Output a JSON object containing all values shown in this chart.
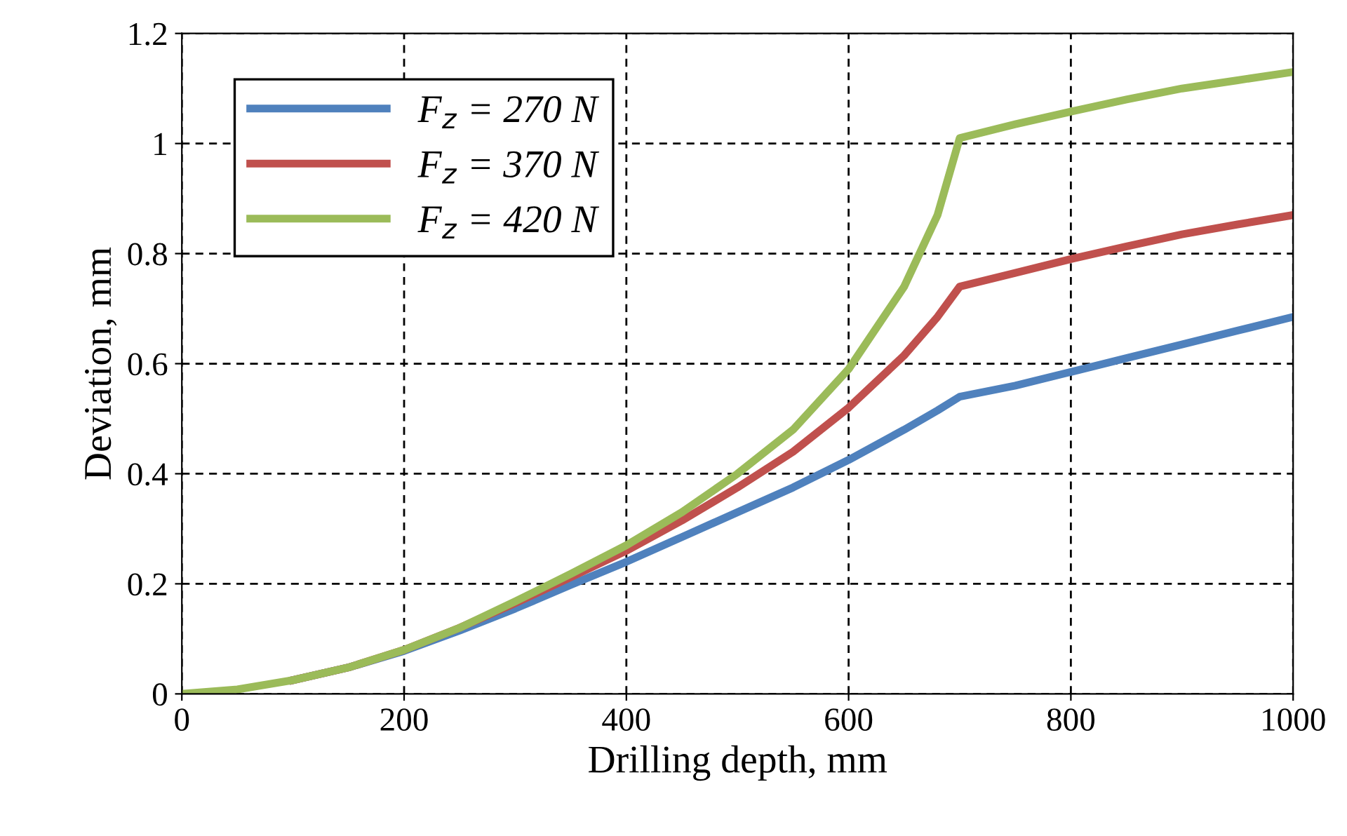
{
  "chart_data": {
    "type": "line",
    "xlabel": "Drilling depth, mm",
    "ylabel": "Deviation, mm",
    "x": [
      0,
      50,
      100,
      150,
      200,
      250,
      300,
      350,
      400,
      450,
      500,
      550,
      600,
      650,
      680,
      700,
      750,
      800,
      850,
      900,
      950,
      1000
    ],
    "series": [
      {
        "name": "F$_{z}$ = 270 N",
        "color": "#4f81bd",
        "values": [
          null,
          null,
          0.025,
          0.048,
          0.078,
          0.115,
          0.155,
          0.198,
          0.24,
          0.285,
          0.33,
          0.375,
          0.425,
          0.48,
          0.515,
          0.54,
          0.56,
          0.585,
          0.61,
          0.635,
          0.66,
          0.685
        ]
      },
      {
        "name": "F$_{z}$ = 370 N",
        "color": "#c0504d",
        "values": [
          null,
          null,
          0.025,
          0.048,
          0.08,
          0.12,
          0.165,
          0.212,
          0.26,
          0.315,
          0.375,
          0.44,
          0.52,
          0.615,
          0.685,
          0.74,
          0.765,
          0.79,
          0.813,
          0.835,
          0.853,
          0.87
        ]
      },
      {
        "name": "F$_{z}$ = 420 N",
        "color": "#9bbb59",
        "values": [
          0,
          0.008,
          0.025,
          0.048,
          0.08,
          0.12,
          0.168,
          0.218,
          0.27,
          0.33,
          0.4,
          0.48,
          0.59,
          0.74,
          0.87,
          1.01,
          1.035,
          1.058,
          1.08,
          1.1,
          1.115,
          1.13
        ]
      }
    ],
    "xlim": [
      0,
      1000
    ],
    "xticks": [
      0,
      200,
      400,
      600,
      800,
      1000
    ],
    "ylim": [
      0,
      1.2
    ],
    "yticks": [
      {
        "value": 0,
        "label": "0"
      },
      {
        "value": 0.2,
        "label": "0.2"
      },
      {
        "value": 0.4,
        "label": "0.4"
      },
      {
        "value": 0.6,
        "label": "0.6"
      },
      {
        "value": 0.8,
        "label": "0.8"
      },
      {
        "value": 1,
        "label": "1"
      },
      {
        "value": 1.2,
        "label": "1.2"
      }
    ],
    "grid": true,
    "legend": "top left",
    "marker": "none",
    "line_style": "solid"
  }
}
